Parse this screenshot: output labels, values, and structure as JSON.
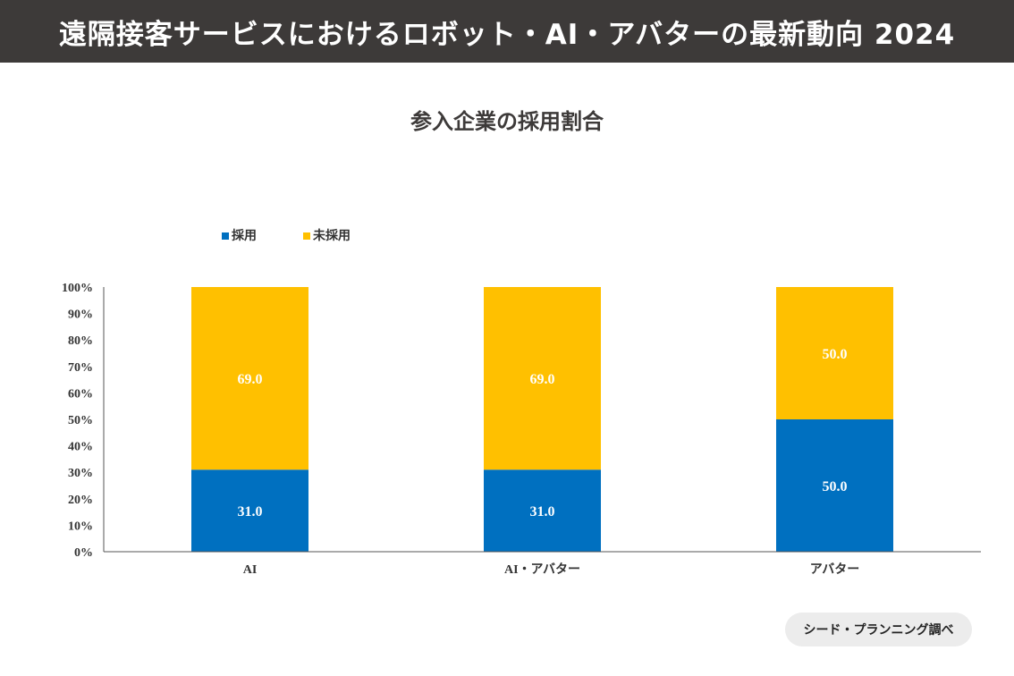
{
  "header": {
    "title": "遠隔接客サービスにおけるロボット・AI・アバターの最新動向 2024"
  },
  "colors": {
    "header_bg": "#3d3a39",
    "adopted": "#0070c0",
    "not_adopted": "#ffc000"
  },
  "chart_data": {
    "type": "bar",
    "stacked": true,
    "title": "参入企業の採用割合",
    "xlabel": "",
    "ylabel": "",
    "ylim": [
      0,
      100
    ],
    "y_ticks": [
      "0%",
      "10%",
      "20%",
      "30%",
      "40%",
      "50%",
      "60%",
      "70%",
      "80%",
      "90%",
      "100%"
    ],
    "categories": [
      "AI",
      "AI・アバター",
      "アバター"
    ],
    "series": [
      {
        "name": "採用",
        "values": [
          31.0,
          31.0,
          50.0
        ],
        "labels": [
          "31.0",
          "31.0",
          "50.0"
        ]
      },
      {
        "name": "未採用",
        "values": [
          69.0,
          69.0,
          50.0
        ],
        "labels": [
          "69.0",
          "69.0",
          "50.0"
        ]
      }
    ],
    "legend_position": "top-left"
  },
  "source": {
    "label": "シード・プランニング調べ"
  }
}
